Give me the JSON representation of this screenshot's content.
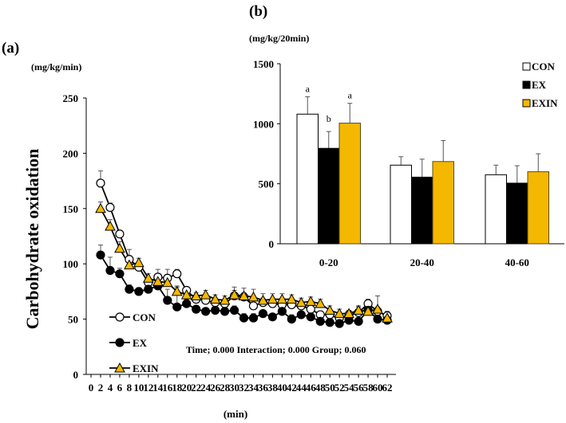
{
  "chart_data": [
    {
      "type": "line",
      "panel_label": "(a)",
      "ylabel": "Carbohydrate oxidation",
      "yunit": "(mg/kg/min)",
      "xlabel": "(min)",
      "ylim": [
        0,
        250
      ],
      "yticks": [
        "0",
        "50",
        "100",
        "150",
        "200",
        "250"
      ],
      "xlim": [
        0,
        64
      ],
      "xticks": [
        "0",
        "2",
        "4",
        "6",
        "8",
        "10",
        "12",
        "14",
        "16",
        "18",
        "20",
        "22",
        "24",
        "26",
        "28",
        "30",
        "32",
        "34",
        "36",
        "38",
        "40",
        "42",
        "44",
        "46",
        "48",
        "50",
        "52",
        "54",
        "56",
        "58",
        "60",
        "62"
      ],
      "x": [
        2,
        4,
        6,
        8,
        10,
        12,
        14,
        16,
        18,
        20,
        22,
        24,
        26,
        28,
        30,
        32,
        34,
        36,
        38,
        40,
        42,
        44,
        46,
        48,
        50,
        52,
        54,
        56,
        58,
        60,
        62
      ],
      "series": [
        {
          "name": "CON",
          "marker": "open-circle",
          "color": "#ffffff",
          "values": [
            173,
            151,
            127,
            104,
            97,
            83,
            88,
            87,
            91,
            76,
            68,
            67,
            65,
            64,
            71,
            70,
            62,
            65,
            64,
            63,
            63,
            62,
            59,
            54,
            54,
            51,
            54,
            56,
            64,
            57,
            53
          ],
          "errors": [
            11,
            4,
            3,
            9,
            3,
            4,
            7,
            8,
            4,
            3,
            3,
            3,
            3,
            3,
            5,
            4,
            3,
            4,
            3,
            3,
            3,
            3,
            3,
            3,
            3,
            3,
            3,
            5,
            4,
            4,
            4
          ]
        },
        {
          "name": "EX",
          "marker": "filled-circle",
          "color": "#000000",
          "values": [
            108,
            94,
            91,
            77,
            75,
            77,
            80,
            67,
            61,
            64,
            59,
            57,
            58,
            57,
            58,
            51,
            51,
            55,
            52,
            57,
            50,
            54,
            52,
            48,
            47,
            46,
            49,
            48,
            58,
            50,
            49
          ],
          "errors": [
            9,
            12,
            5,
            4,
            3,
            5,
            5,
            10,
            19,
            4,
            3,
            3,
            4,
            3,
            4,
            4,
            4,
            3,
            3,
            4,
            4,
            3,
            3,
            3,
            3,
            6,
            4,
            3,
            4,
            3,
            8
          ]
        },
        {
          "name": "EXIN",
          "marker": "triangle",
          "color": "#f5b800",
          "values": [
            150,
            134,
            114,
            99,
            101,
            87,
            84,
            83,
            75,
            72,
            71,
            72,
            68,
            67,
            72,
            71,
            70,
            67,
            68,
            68,
            68,
            65,
            66,
            64,
            58,
            55,
            55,
            58,
            57,
            59,
            51
          ],
          "errors": [
            6,
            6,
            6,
            6,
            4,
            4,
            4,
            4,
            4,
            4,
            3,
            4,
            4,
            4,
            7,
            7,
            7,
            6,
            5,
            5,
            4,
            4,
            4,
            4,
            4,
            4,
            3,
            4,
            4,
            12,
            4
          ]
        }
      ],
      "annotation": "Time; 0.000   Interaction; 0.000   Group; 0.060",
      "legend": "bottom-left"
    },
    {
      "type": "bar",
      "panel_label": "(b)",
      "yunit": "(mg/kg/20min)",
      "categories": [
        "0-20",
        "20-40",
        "40-60"
      ],
      "ylim": [
        0,
        1500
      ],
      "yticks": [
        "0",
        "500",
        "1000",
        "1500"
      ],
      "series": [
        {
          "name": "CON",
          "color": "#ffffff",
          "values": [
            1080,
            655,
            575
          ],
          "errors": [
            145,
            70,
            80
          ],
          "sig": [
            "a",
            "",
            ""
          ]
        },
        {
          "name": "EX",
          "color": "#000000",
          "values": [
            795,
            555,
            505
          ],
          "errors": [
            140,
            150,
            145
          ],
          "sig": [
            "b",
            "",
            ""
          ]
        },
        {
          "name": "EXIN",
          "color": "#f5b800",
          "values": [
            1005,
            685,
            600
          ],
          "errors": [
            165,
            175,
            150
          ],
          "sig": [
            "a",
            "",
            ""
          ]
        }
      ],
      "legend": "top-right"
    }
  ]
}
